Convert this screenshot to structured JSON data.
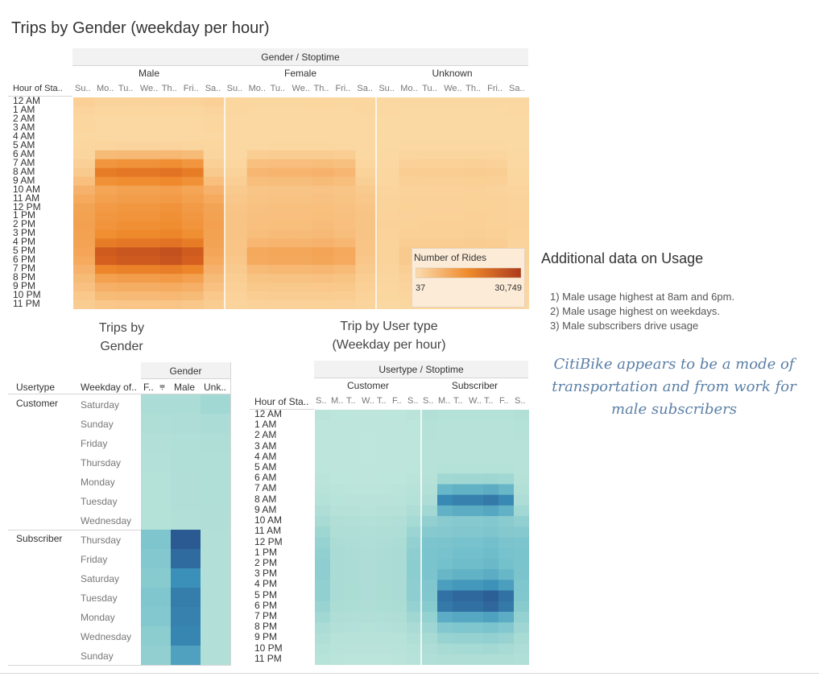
{
  "colors": {
    "orange_low": "#fbd9a3",
    "orange_high": "#b2441f",
    "teal_low": "#bfe6dc",
    "teal_high": "#2b5a93",
    "italic_text": "#5b7fa6"
  },
  "titles": {
    "main": "Trips by Gender (weekday per hour)",
    "gender_user_title_1": "Trips by",
    "gender_user_title_2": "Gender",
    "usertype_title_1": "Trip by User type",
    "usertype_title_2": "(Weekday per hour)"
  },
  "notes": {
    "heading": "Additional data on Usage",
    "items": [
      "1) Male usage highest at 8am and 6pm.",
      "2) Male usage highest on weekdays.",
      "3) Male subscribers drive usage"
    ],
    "conclusion": [
      "CitiBike appears to be a mode of",
      "transportation and from work for",
      "male subscribers"
    ]
  },
  "chart_data": [
    {
      "type": "heatmap",
      "title": "Trips by Gender (weekday per hour)",
      "column_header": "Gender / Stoptime",
      "row_header": "Hour of Sta..",
      "groups": [
        "Male",
        "Female",
        "Unknown"
      ],
      "day_labels": [
        "Su..",
        "Mo..",
        "Tu..",
        "We..",
        "Th..",
        "Fri..",
        "Sa.."
      ],
      "hours": [
        "12 AM",
        "1 AM",
        "2 AM",
        "3 AM",
        "4 AM",
        "5 AM",
        "6 AM",
        "7 AM",
        "8 AM",
        "9 AM",
        "10 AM",
        "11 AM",
        "12 PM",
        "1 PM",
        "2 PM",
        "3 PM",
        "4 PM",
        "5 PM",
        "6 PM",
        "7 PM",
        "8 PM",
        "9 PM",
        "10 PM",
        "11 PM"
      ],
      "hourly_profile": [
        0.04,
        0.02,
        0.01,
        0.01,
        0.01,
        0.03,
        0.2,
        0.45,
        0.62,
        0.48,
        0.35,
        0.38,
        0.42,
        0.44,
        0.46,
        0.5,
        0.62,
        0.85,
        0.82,
        0.55,
        0.38,
        0.28,
        0.2,
        0.12
      ],
      "weekday_factor": [
        0.45,
        0.95,
        1.0,
        1.0,
        1.05,
        0.95,
        0.5
      ],
      "weekend_profile": [
        0.1,
        0.06,
        0.04,
        0.03,
        0.02,
        0.03,
        0.05,
        0.1,
        0.18,
        0.3,
        0.45,
        0.55,
        0.62,
        0.64,
        0.65,
        0.64,
        0.62,
        0.6,
        0.55,
        0.45,
        0.35,
        0.28,
        0.2,
        0.14
      ],
      "group_scale": [
        1.0,
        0.38,
        0.12
      ],
      "legend": {
        "title": "Number of Rides",
        "min": 37,
        "max": 30749,
        "min_label": "37",
        "max_label": "30,749"
      }
    },
    {
      "type": "heatmap",
      "title": "Trips by Gender",
      "row_header_1": "Usertype",
      "row_header_2": "Weekday of..",
      "column_header": "Gender",
      "columns": [
        "F..",
        "Male",
        "Unk.."
      ],
      "rows": [
        {
          "usertype": "Customer",
          "weekday": "Saturday",
          "values": [
            0.22,
            0.22,
            0.28
          ]
        },
        {
          "usertype": "",
          "weekday": "Sunday",
          "values": [
            0.18,
            0.2,
            0.22
          ]
        },
        {
          "usertype": "",
          "weekday": "Friday",
          "values": [
            0.14,
            0.16,
            0.18
          ]
        },
        {
          "usertype": "",
          "weekday": "Thursday",
          "values": [
            0.13,
            0.16,
            0.17
          ]
        },
        {
          "usertype": "",
          "weekday": "Monday",
          "values": [
            0.12,
            0.15,
            0.16
          ]
        },
        {
          "usertype": "",
          "weekday": "Tuesday",
          "values": [
            0.12,
            0.15,
            0.16
          ]
        },
        {
          "usertype": "",
          "weekday": "Wednesday",
          "values": [
            0.12,
            0.14,
            0.15
          ]
        },
        {
          "usertype": "Subscriber",
          "weekday": "Thursday",
          "values": [
            0.45,
            1.0,
            0.14
          ]
        },
        {
          "usertype": "",
          "weekday": "Friday",
          "values": [
            0.43,
            0.92,
            0.14
          ]
        },
        {
          "usertype": "",
          "weekday": "Saturday",
          "values": [
            0.4,
            0.75,
            0.14
          ]
        },
        {
          "usertype": "",
          "weekday": "Tuesday",
          "values": [
            0.44,
            0.84,
            0.14
          ]
        },
        {
          "usertype": "",
          "weekday": "Monday",
          "values": [
            0.43,
            0.82,
            0.14
          ]
        },
        {
          "usertype": "",
          "weekday": "Wednesday",
          "values": [
            0.38,
            0.8,
            0.14
          ]
        },
        {
          "usertype": "",
          "weekday": "Sunday",
          "values": [
            0.36,
            0.66,
            0.14
          ]
        }
      ]
    },
    {
      "type": "heatmap",
      "title": "Trip by User type (Weekday per hour)",
      "column_header": "Usertype / Stoptime",
      "row_header": "Hour of Sta..",
      "groups": [
        "Customer",
        "Subscriber"
      ],
      "day_labels": [
        "S..",
        "M..",
        "T..",
        "W..",
        "T..",
        "F..",
        "S.."
      ],
      "hours": [
        "12 AM",
        "1 AM",
        "2 AM",
        "3 AM",
        "4 AM",
        "5 AM",
        "6 AM",
        "7 AM",
        "8 AM",
        "9 AM",
        "10 AM",
        "11 AM",
        "12 PM",
        "1 PM",
        "2 PM",
        "3 PM",
        "4 PM",
        "5 PM",
        "6 PM",
        "7 PM",
        "8 PM",
        "9 PM",
        "10 PM",
        "11 PM"
      ],
      "customer_profile": [
        0.05,
        0.03,
        0.02,
        0.02,
        0.02,
        0.03,
        0.05,
        0.08,
        0.12,
        0.18,
        0.25,
        0.3,
        0.34,
        0.36,
        0.37,
        0.37,
        0.36,
        0.36,
        0.33,
        0.28,
        0.22,
        0.16,
        0.12,
        0.08
      ],
      "customer_day_factor": [
        1.1,
        0.7,
        0.65,
        0.6,
        0.65,
        0.7,
        1.15
      ],
      "subscriber_profile": [
        0.04,
        0.02,
        0.01,
        0.01,
        0.01,
        0.04,
        0.22,
        0.52,
        0.78,
        0.55,
        0.35,
        0.37,
        0.42,
        0.44,
        0.46,
        0.52,
        0.66,
        0.9,
        0.86,
        0.58,
        0.38,
        0.27,
        0.19,
        0.11
      ],
      "subscriber_day_factor": [
        0.45,
        0.95,
        1.0,
        1.0,
        1.05,
        0.95,
        0.5
      ],
      "subscriber_weekend_profile": [
        0.1,
        0.06,
        0.04,
        0.03,
        0.02,
        0.03,
        0.05,
        0.1,
        0.18,
        0.3,
        0.42,
        0.5,
        0.56,
        0.58,
        0.58,
        0.57,
        0.55,
        0.53,
        0.48,
        0.4,
        0.32,
        0.25,
        0.18,
        0.13
      ]
    }
  ]
}
